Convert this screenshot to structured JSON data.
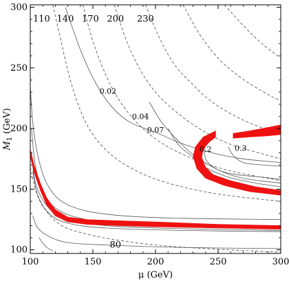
{
  "chart_data": {
    "type": "line",
    "title": "",
    "xlabel": "μ (GeV)",
    "ylabel": "M1 (GeV)",
    "xlim": [
      100,
      300
    ],
    "ylim": [
      97,
      302
    ],
    "x_ticks": [
      100,
      150,
      200,
      250,
      300
    ],
    "y_ticks": [
      100,
      150,
      200,
      250,
      300
    ],
    "grid": false,
    "colors": {
      "solid": "#555555",
      "dashed": "#444444",
      "band": "#ee1111",
      "frame": "#000000"
    },
    "dashed_mass_contours": [
      {
        "label": "80",
        "points": [
          [
            100,
            168
          ],
          [
            105,
            147
          ],
          [
            112,
            133
          ],
          [
            125,
            120
          ],
          [
            145,
            113
          ],
          [
            170,
            108
          ],
          [
            200,
            104
          ],
          [
            240,
            101
          ],
          [
            300,
            98
          ]
        ]
      },
      {
        "label": "110",
        "points": [
          [
            118,
            302
          ],
          [
            125,
            270
          ],
          [
            132,
            240
          ],
          [
            140,
            215
          ],
          [
            150,
            195
          ],
          [
            165,
            178
          ],
          [
            185,
            165
          ],
          [
            210,
            155
          ],
          [
            250,
            146
          ],
          [
            300,
            140
          ]
        ]
      },
      {
        "label": "140",
        "points": [
          [
            142,
            302
          ],
          [
            150,
            272
          ],
          [
            160,
            245
          ],
          [
            170,
            225
          ],
          [
            185,
            205
          ],
          [
            205,
            188
          ],
          [
            230,
            175
          ],
          [
            260,
            165
          ],
          [
            300,
            157
          ]
        ]
      },
      {
        "label": "170",
        "points": [
          [
            167,
            302
          ],
          [
            177,
            272
          ],
          [
            188,
            248
          ],
          [
            200,
            230
          ],
          [
            215,
            215
          ],
          [
            235,
            200
          ],
          [
            260,
            187
          ],
          [
            300,
            175
          ]
        ]
      },
      {
        "label": "200",
        "points": [
          [
            192,
            302
          ],
          [
            203,
            275
          ],
          [
            215,
            253
          ],
          [
            228,
            238
          ],
          [
            245,
            222
          ],
          [
            270,
            207
          ],
          [
            300,
            195
          ]
        ]
      },
      {
        "label": "230",
        "points": [
          [
            222,
            302
          ],
          [
            235,
            278
          ],
          [
            250,
            258
          ],
          [
            268,
            242
          ],
          [
            290,
            228
          ],
          [
            300,
            223
          ]
        ]
      },
      {
        "label": "",
        "points": [
          [
            255,
            302
          ],
          [
            270,
            285
          ],
          [
            285,
            270
          ],
          [
            300,
            258
          ]
        ]
      }
    ],
    "solid_contours": [
      {
        "label": "",
        "points": [
          [
            100,
            235
          ],
          [
            102,
            205
          ],
          [
            106,
            178
          ],
          [
            113,
            155
          ],
          [
            125,
            140
          ],
          [
            145,
            132
          ],
          [
            175,
            128
          ],
          [
            220,
            126
          ],
          [
            300,
            125
          ]
        ]
      },
      {
        "label": "",
        "points": [
          [
            101,
            200
          ],
          [
            104,
            170
          ],
          [
            110,
            148
          ],
          [
            122,
            133
          ],
          [
            145,
            125
          ],
          [
            180,
            121
          ],
          [
            240,
            119
          ],
          [
            300,
            118
          ]
        ]
      },
      {
        "label": "",
        "points": [
          [
            101,
            180
          ],
          [
            104,
            156
          ],
          [
            112,
            138
          ],
          [
            125,
            127
          ],
          [
            150,
            121
          ],
          [
            200,
            118
          ],
          [
            300,
            116
          ]
        ]
      },
      {
        "label": "",
        "points": [
          [
            102,
            165
          ],
          [
            106,
            145
          ],
          [
            115,
            130
          ],
          [
            130,
            122
          ],
          [
            160,
            118
          ],
          [
            220,
            116
          ],
          [
            300,
            115
          ]
        ]
      },
      {
        "label": "",
        "points": [
          [
            102,
            128
          ],
          [
            106,
            118
          ],
          [
            115,
            111
          ],
          [
            130,
            106
          ],
          [
            160,
            104
          ],
          [
            220,
            102
          ],
          [
            300,
            101
          ]
        ]
      },
      {
        "label": "",
        "points": [
          [
            107,
            110
          ],
          [
            112,
            103
          ],
          [
            118,
            99
          ]
        ]
      },
      {
        "label": "0.02",
        "points": [
          [
            128,
            300
          ],
          [
            140,
            265
          ],
          [
            152,
            238
          ],
          [
            165,
            218
          ],
          [
            180,
            205
          ],
          [
            200,
            197
          ],
          [
            220,
            188
          ],
          [
            245,
            180
          ],
          [
            270,
            175
          ],
          [
            300,
            172
          ]
        ]
      },
      {
        "label": "0.04",
        "points": [
          [
            195,
            222
          ],
          [
            205,
            205
          ],
          [
            218,
            190
          ],
          [
            232,
            177
          ],
          [
            250,
            166
          ],
          [
            270,
            159
          ],
          [
            300,
            155
          ]
        ]
      },
      {
        "label": "0.07",
        "points": [
          [
            210,
            200
          ],
          [
            218,
            187
          ],
          [
            228,
            178
          ],
          [
            240,
            168
          ],
          [
            258,
            160
          ],
          [
            280,
            155
          ],
          [
            300,
            152
          ]
        ]
      },
      {
        "label": "0.2",
        "points": [
          [
            240,
            190
          ],
          [
            240,
            175
          ],
          [
            250,
            166
          ],
          [
            265,
            162
          ],
          [
            285,
            160
          ],
          [
            300,
            158
          ]
        ]
      },
      {
        "label": "0.3",
        "points": [
          [
            258,
            185
          ],
          [
            262,
            178
          ],
          [
            270,
            172
          ],
          [
            285,
            170
          ],
          [
            300,
            169
          ]
        ]
      }
    ],
    "red_bands": [
      {
        "name": "",
        "upper": [
          [
            100,
            183
          ],
          [
            103,
            170
          ],
          [
            108,
            155
          ],
          [
            113,
            143
          ],
          [
            120,
            133
          ],
          [
            130,
            127
          ],
          [
            145,
            125
          ],
          [
            170,
            124
          ],
          [
            200,
            123
          ],
          [
            250,
            121
          ],
          [
            300,
            120
          ]
        ],
        "lower": [
          [
            100,
            177
          ],
          [
            103,
            164
          ],
          [
            108,
            149
          ],
          [
            113,
            137
          ],
          [
            120,
            128
          ],
          [
            130,
            123
          ],
          [
            145,
            121
          ],
          [
            170,
            120
          ],
          [
            200,
            119
          ],
          [
            250,
            118
          ],
          [
            300,
            117
          ]
        ]
      },
      {
        "name": "",
        "upper": [
          [
            248,
            198
          ],
          [
            238,
            193
          ],
          [
            232,
            185
          ],
          [
            230,
            177
          ],
          [
            233,
            167
          ],
          [
            240,
            159
          ],
          [
            255,
            153
          ],
          [
            275,
            148
          ],
          [
            300,
            145
          ]
        ],
        "lower": [
          [
            248,
            193
          ],
          [
            243,
            189
          ],
          [
            238,
            183
          ],
          [
            237,
            176
          ],
          [
            240,
            168
          ],
          [
            246,
            162
          ],
          [
            260,
            157
          ],
          [
            280,
            152
          ],
          [
            300,
            149
          ]
        ]
      },
      {
        "name": "",
        "upper": [
          [
            262,
            196
          ],
          [
            275,
            198
          ],
          [
            290,
            201
          ],
          [
            300,
            203
          ]
        ],
        "lower": [
          [
            262,
            192
          ],
          [
            275,
            193
          ],
          [
            290,
            194
          ],
          [
            300,
            195
          ]
        ]
      }
    ]
  }
}
